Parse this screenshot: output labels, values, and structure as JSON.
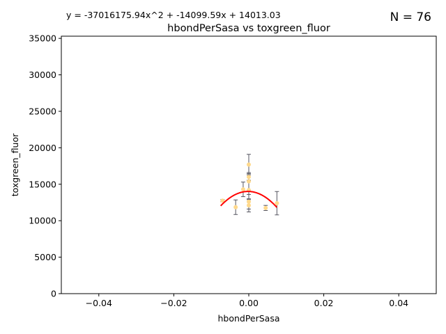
{
  "chart_data": {
    "type": "scatter",
    "title": "hbondPerSasa vs toxgreen_fluor",
    "xlabel": "hbondPerSasa",
    "ylabel": "toxgreen_fluor",
    "equation": "y = -37016175.94x^2 + -14099.59x + 14013.03",
    "n_label": "N = 76",
    "xlim": [
      -0.05,
      0.05
    ],
    "ylim": [
      0,
      35300
    ],
    "xticks": [
      -0.04,
      -0.02,
      0.0,
      0.02,
      0.04
    ],
    "xtick_labels": [
      "−0.04",
      "−0.02",
      "0.00",
      "0.02",
      "0.04"
    ],
    "yticks": [
      0,
      5000,
      10000,
      15000,
      20000,
      25000,
      30000,
      35000
    ],
    "ytick_labels": [
      "0",
      "5000",
      "10000",
      "15000",
      "20000",
      "25000",
      "30000",
      "35000"
    ],
    "grid": false,
    "colors": {
      "points": "#ffd98c",
      "errorbars": "#555560",
      "fit": "#ff0000"
    },
    "points": [
      {
        "x": -0.007,
        "y": 12750,
        "err": 150
      },
      {
        "x": -0.0035,
        "y": 11850,
        "err": 1000
      },
      {
        "x": -0.0015,
        "y": 14300,
        "err": 1000
      },
      {
        "x": 0.0,
        "y": 17700,
        "err": 1400
      },
      {
        "x": 0.0,
        "y": 16000,
        "err": 450
      },
      {
        "x": 0.0,
        "y": 15400,
        "err": 1200
      },
      {
        "x": 0.0,
        "y": 14200,
        "err": 1300
      },
      {
        "x": 0.0,
        "y": 12600,
        "err": 1000
      },
      {
        "x": 0.0,
        "y": 12100,
        "err": 900
      },
      {
        "x": 0.0045,
        "y": 11750,
        "err": 350
      },
      {
        "x": 0.0075,
        "y": 12400,
        "err": 1600
      }
    ],
    "fit": {
      "a": -37016175.94,
      "b": -14099.59,
      "c": 14013.03,
      "x_range": [
        -0.0075,
        0.0075
      ]
    }
  }
}
